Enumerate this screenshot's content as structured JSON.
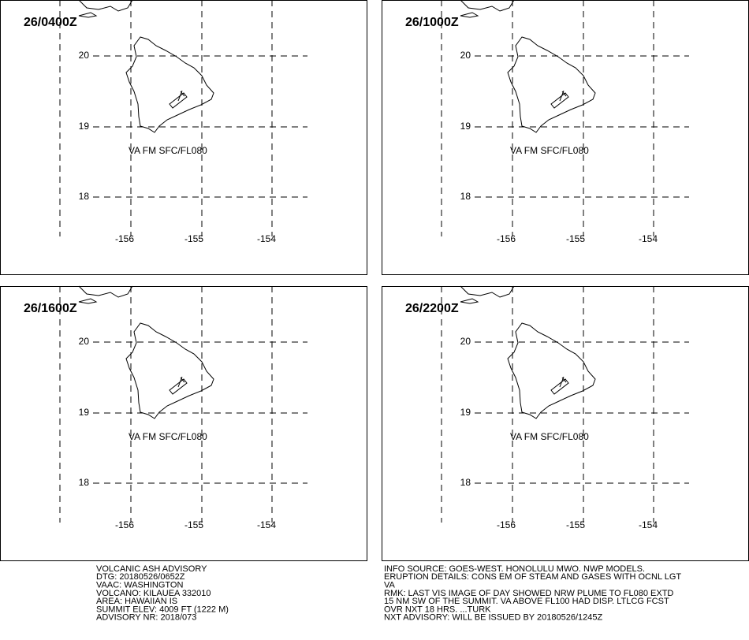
{
  "panels": [
    {
      "time": "26/0400Z",
      "annotation": "VA FM SFC/FL080",
      "lat_labels": [
        "20",
        "19",
        "18"
      ],
      "lon_labels": [
        "-156",
        "-155",
        "-154"
      ]
    },
    {
      "time": "26/1000Z",
      "annotation": "VA FM SFC/FL080",
      "lat_labels": [
        "20",
        "19",
        "18"
      ],
      "lon_labels": [
        "-156",
        "-155",
        "-154"
      ]
    },
    {
      "time": "26/1600Z",
      "annotation": "VA FM SFC/FL080",
      "lat_labels": [
        "20",
        "19",
        "18"
      ],
      "lon_labels": [
        "-156",
        "-155",
        "-154"
      ]
    },
    {
      "time": "26/2200Z",
      "annotation": "VA FM SFC/FL080",
      "lat_labels": [
        "20",
        "19",
        "18"
      ],
      "lon_labels": [
        "-156",
        "-155",
        "-154"
      ]
    }
  ],
  "advisory_left": [
    "VOLCANIC ASH ADVISORY",
    "DTG: 20180526/0652Z",
    "VAAC: WASHINGTON",
    "VOLCANO: KILAUEA 332010",
    "AREA: HAWAIIAN IS",
    "SUMMIT ELEV: 4009 FT (1222 M)",
    "ADVISORY NR: 2018/073"
  ],
  "advisory_right": [
    "INFO SOURCE: GOES-WEST. HONOLULU MWO. NWP MODELS.",
    "ERUPTION DETAILS: CONS EM OF STEAM AND GASES WITH OCNL LGT",
    "VA",
    "RMK: LAST VIS IMAGE OF DAY SHOWED NRW PLUME TO FL080 EXTD",
    "15 NM SW OF THE SUMMIT. VA ABOVE FL100 HAD DISP. LTLCG FCST",
    "OVR NXT 18 HRS. ...TURK",
    "NXT ADVISORY: WILL BE ISSUED BY 20180526/1245Z"
  ]
}
